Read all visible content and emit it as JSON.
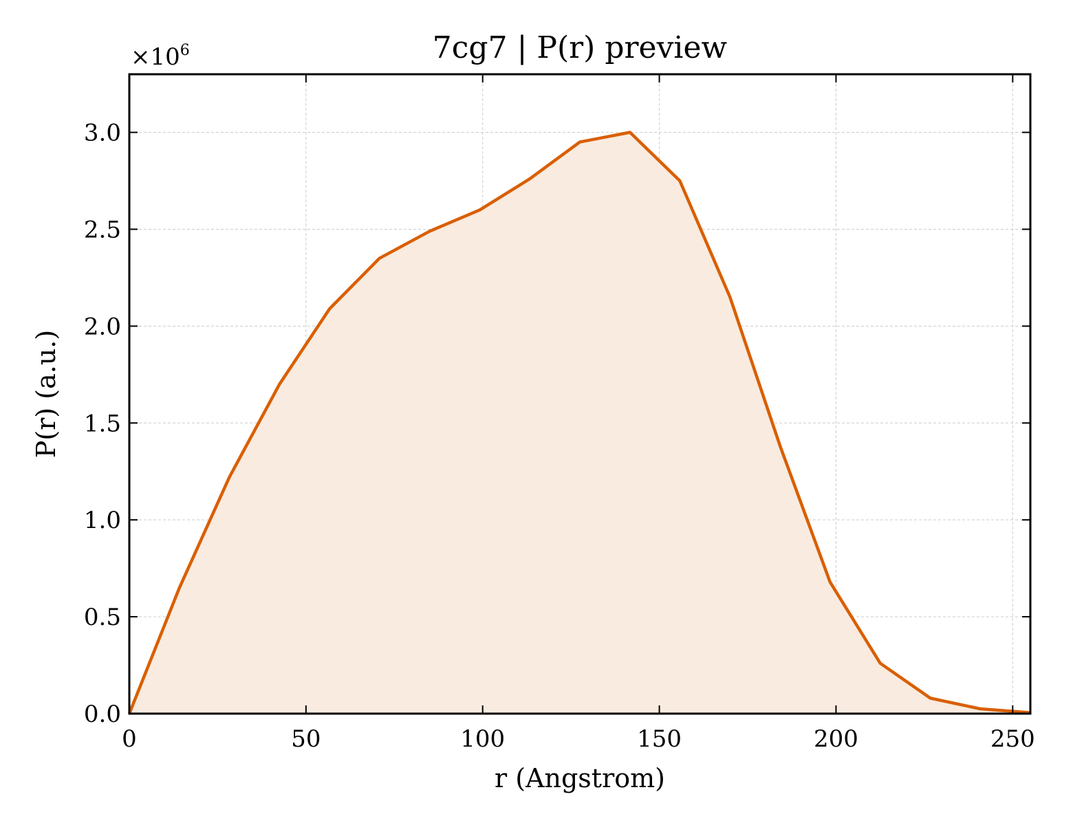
{
  "chart_data": {
    "type": "area",
    "title": "7cg7 | P(r) preview",
    "xlabel": "r (Angstrom)",
    "ylabel": "P(r) (a.u.)",
    "y_multiplier": "×10",
    "y_multiplier_exponent": "6",
    "xlim": [
      0,
      255
    ],
    "ylim": [
      0,
      3.3
    ],
    "x_ticks": [
      0,
      50,
      100,
      150,
      200,
      250
    ],
    "x_tick_labels": [
      "0",
      "50",
      "100",
      "150",
      "200",
      "250"
    ],
    "y_ticks": [
      0,
      0.5,
      1.0,
      1.5,
      2.0,
      2.5,
      3.0
    ],
    "y_tick_labels": [
      "0.0",
      "0.5",
      "1.0",
      "1.5",
      "2.0",
      "2.5",
      "3.0"
    ],
    "grid": true,
    "series": [
      {
        "color": "#d95f02",
        "fill_color": "#f9ebe0",
        "x": [
          0,
          14.2,
          28.3,
          42.5,
          56.7,
          70.8,
          85.0,
          99.2,
          113.3,
          127.5,
          141.7,
          155.8,
          170.0,
          184.2,
          198.3,
          212.5,
          226.7,
          240.8,
          255.0
        ],
        "y": [
          0.0,
          0.65,
          1.22,
          1.7,
          2.09,
          2.35,
          2.49,
          2.6,
          2.76,
          2.95,
          3.0,
          2.75,
          2.15,
          1.38,
          0.68,
          0.26,
          0.08,
          0.025,
          0.005
        ]
      }
    ]
  }
}
